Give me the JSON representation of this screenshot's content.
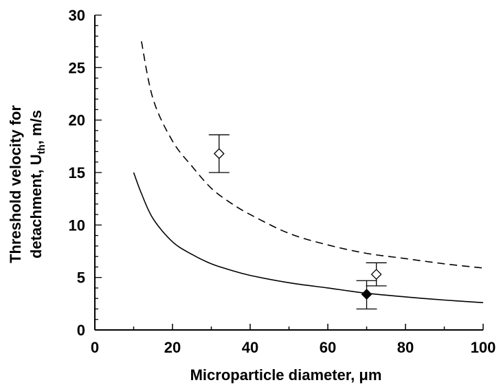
{
  "chart_data": {
    "type": "scatter",
    "xlabel": "Microparticle diameter, μm",
    "ylabel_line1": "Threshold velocity for",
    "ylabel_line2_prefix": "detachment, U",
    "ylabel_line2_sub": "th",
    "ylabel_line2_suffix": ", m/s",
    "xlim": [
      0,
      100
    ],
    "ylim": [
      0,
      30
    ],
    "xticks": [
      0,
      20,
      40,
      60,
      80,
      100
    ],
    "yticks": [
      0,
      5,
      10,
      15,
      20,
      25,
      30
    ],
    "grid": false,
    "legend": "none",
    "series": [
      {
        "style": "dashed-line",
        "x": [
          12,
          15,
          20,
          25,
          30,
          35,
          40,
          50,
          60,
          70,
          80,
          90,
          100
        ],
        "y": [
          27.5,
          22.0,
          18.0,
          15.6,
          13.5,
          12.1,
          11.0,
          9.2,
          8.1,
          7.3,
          6.8,
          6.3,
          5.9
        ]
      },
      {
        "style": "solid-line",
        "x": [
          10,
          12,
          15,
          20,
          25,
          30,
          35,
          40,
          50,
          60,
          70,
          80,
          90,
          100
        ],
        "y": [
          15.0,
          13.0,
          10.6,
          8.4,
          7.2,
          6.3,
          5.7,
          5.2,
          4.5,
          4.0,
          3.5,
          3.15,
          2.85,
          2.6
        ]
      },
      {
        "style": "open-diamond",
        "x": [
          32,
          72.5
        ],
        "y": [
          16.8,
          5.3
        ],
        "yerr_low": [
          15.0,
          4.2
        ],
        "yerr_high": [
          18.6,
          6.4
        ]
      },
      {
        "style": "filled-diamond",
        "x": [
          70
        ],
        "y": [
          3.4
        ],
        "yerr_low": [
          2.0
        ],
        "yerr_high": [
          4.7
        ]
      }
    ]
  }
}
